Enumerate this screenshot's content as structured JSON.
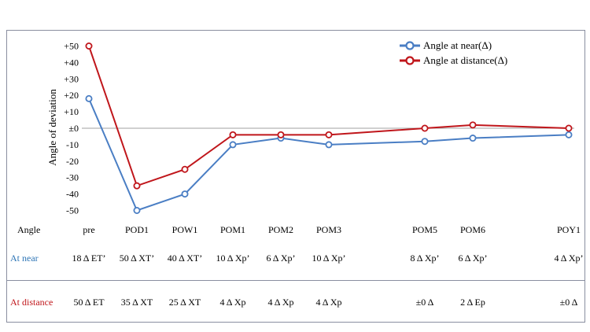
{
  "chart_data": {
    "type": "line",
    "ylabel": "Angle of deviation",
    "ylim": [
      -55,
      55
    ],
    "yticks": [
      50,
      40,
      30,
      20,
      10,
      0,
      -10,
      -20,
      -30,
      -40,
      -50
    ],
    "ytick_labels": [
      "+50",
      "+40",
      "+30",
      "+20",
      "+10",
      "±0",
      "-10",
      "-20",
      "-30",
      "-40",
      "-50"
    ],
    "categories": [
      "pre",
      "POD1",
      "POW1",
      "POM1",
      "POM2",
      "POM3",
      "POM5",
      "POM6",
      "POY1"
    ],
    "series": [
      {
        "name": "Angle at near(Δ)",
        "color": "#4a7ec4",
        "values": [
          18,
          -50,
          -40,
          -10,
          -6,
          -10,
          -8,
          -6,
          -4
        ]
      },
      {
        "name": "Angle at distance(Δ)",
        "color": "#c0161b",
        "values": [
          50,
          -35,
          -25,
          -4,
          -4,
          -4,
          0,
          2,
          0
        ]
      }
    ],
    "legend_position": "top-right",
    "grid": false
  },
  "table": {
    "header_label": "Angle",
    "rows": [
      {
        "label": "At near",
        "color": "#2e75b6",
        "values": [
          "18 Δ ET’",
          "50 Δ XT’",
          "40 Δ XT’",
          "10 Δ Xp’",
          "6 Δ Xp’",
          "10 Δ Xp’",
          "8 Δ Xp’",
          "6 Δ Xp’",
          "4 Δ Xp’"
        ]
      },
      {
        "label": "At distance",
        "color": "#c0161b",
        "values": [
          "50 Δ ET",
          "35 Δ XT",
          "25 Δ XT",
          "4 Δ Xp",
          "4 Δ Xp",
          "4 Δ Xp",
          "±0 Δ",
          "2 Δ Ep",
          "±0 Δ"
        ]
      }
    ]
  }
}
